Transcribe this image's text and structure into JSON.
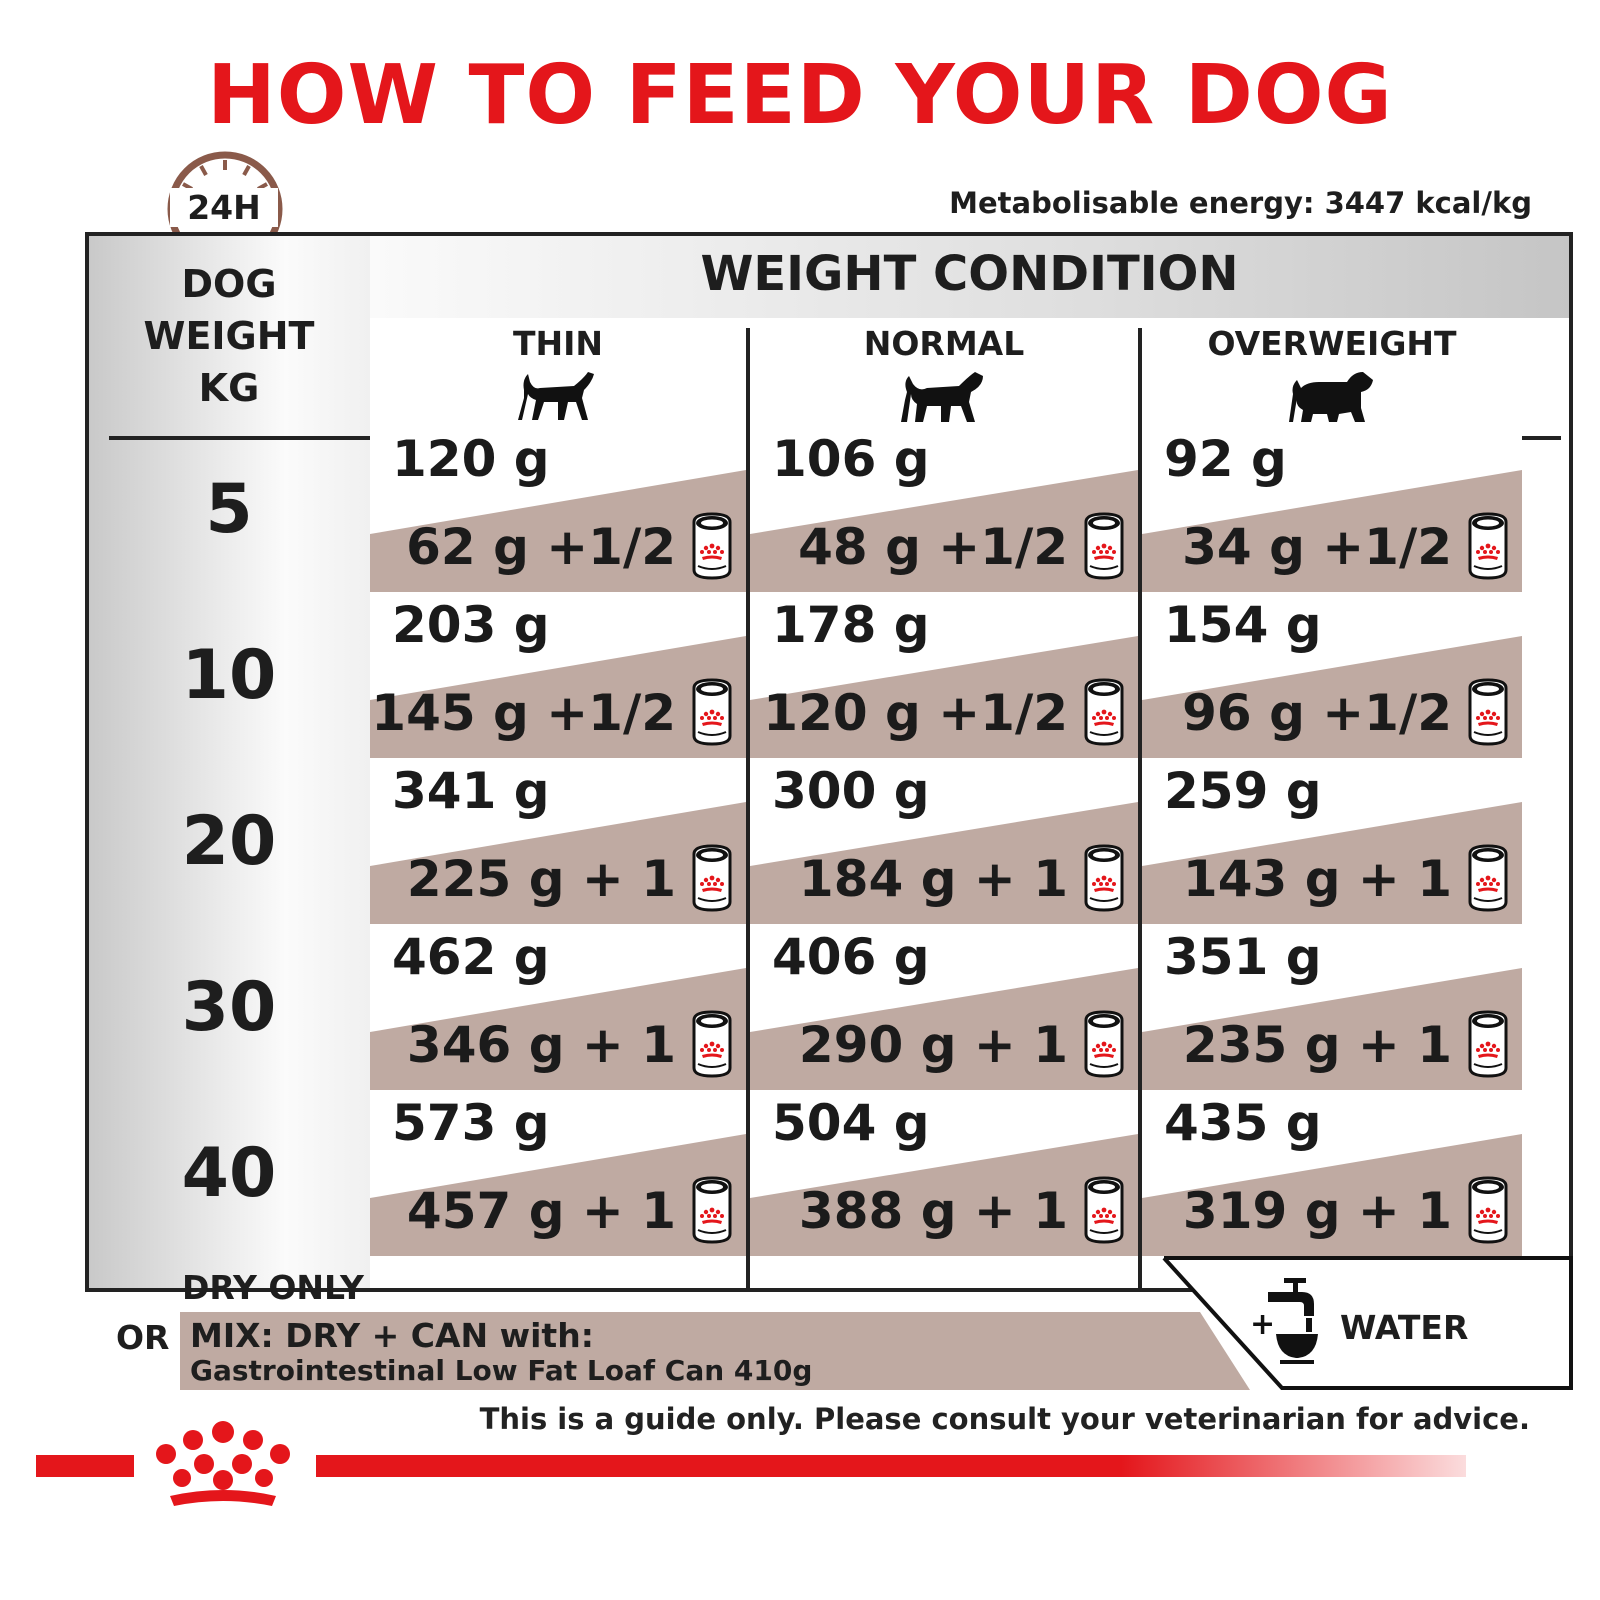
{
  "page": {
    "title": "HOW TO FEED YOUR DOG",
    "energy": "Metabolisable energy: 3447 kcal/kg",
    "clock_label": "24H"
  },
  "table": {
    "weight_header": [
      "DOG",
      "WEIGHT",
      "KG"
    ],
    "condition_header": "WEIGHT CONDITION",
    "columns": [
      {
        "label": "THIN",
        "dog_icon": "thin-dog-icon"
      },
      {
        "label": "NORMAL",
        "dog_icon": "normal-dog-icon"
      },
      {
        "label": "OVERWEIGHT",
        "dog_icon": "overweight-dog-icon"
      }
    ],
    "rows": [
      {
        "weight": "5",
        "cells": [
          {
            "dry": "120 g",
            "mix": "62 g +1/2"
          },
          {
            "dry": "106 g",
            "mix": "48 g +1/2"
          },
          {
            "dry": "92 g",
            "mix": "34 g +1/2"
          }
        ]
      },
      {
        "weight": "10",
        "cells": [
          {
            "dry": "203 g",
            "mix": "145 g +1/2"
          },
          {
            "dry": "178 g",
            "mix": "120 g +1/2"
          },
          {
            "dry": "154 g",
            "mix": "96 g +1/2"
          }
        ]
      },
      {
        "weight": "20",
        "cells": [
          {
            "dry": "341 g",
            "mix": "225 g + 1"
          },
          {
            "dry": "300 g",
            "mix": "184 g + 1"
          },
          {
            "dry": "259 g",
            "mix": "143 g + 1"
          }
        ]
      },
      {
        "weight": "30",
        "cells": [
          {
            "dry": "462 g",
            "mix": "346 g + 1"
          },
          {
            "dry": "406 g",
            "mix": "290 g + 1"
          },
          {
            "dry": "351 g",
            "mix": "235 g + 1"
          }
        ]
      },
      {
        "weight": "40",
        "cells": [
          {
            "dry": "573 g",
            "mix": "457 g + 1"
          },
          {
            "dry": "504 g",
            "mix": "388 g + 1"
          },
          {
            "dry": "435 g",
            "mix": "319 g + 1"
          }
        ]
      }
    ],
    "can_icon": "royal-canin-can-icon"
  },
  "footer": {
    "dry_only": "DRY ONLY",
    "or": "OR",
    "mix_title": "MIX: DRY + CAN with:",
    "mix_product": "Gastrointestinal Low Fat Loaf Can 410g",
    "water_plus": "+",
    "water": "WATER",
    "disclaimer": "This is a guide only. Please consult your veterinarian for advice."
  },
  "colors": {
    "brand_red": "#e4161b",
    "band_taupe": "#bfaaa2",
    "clock_brown": "#8a5a4a"
  }
}
